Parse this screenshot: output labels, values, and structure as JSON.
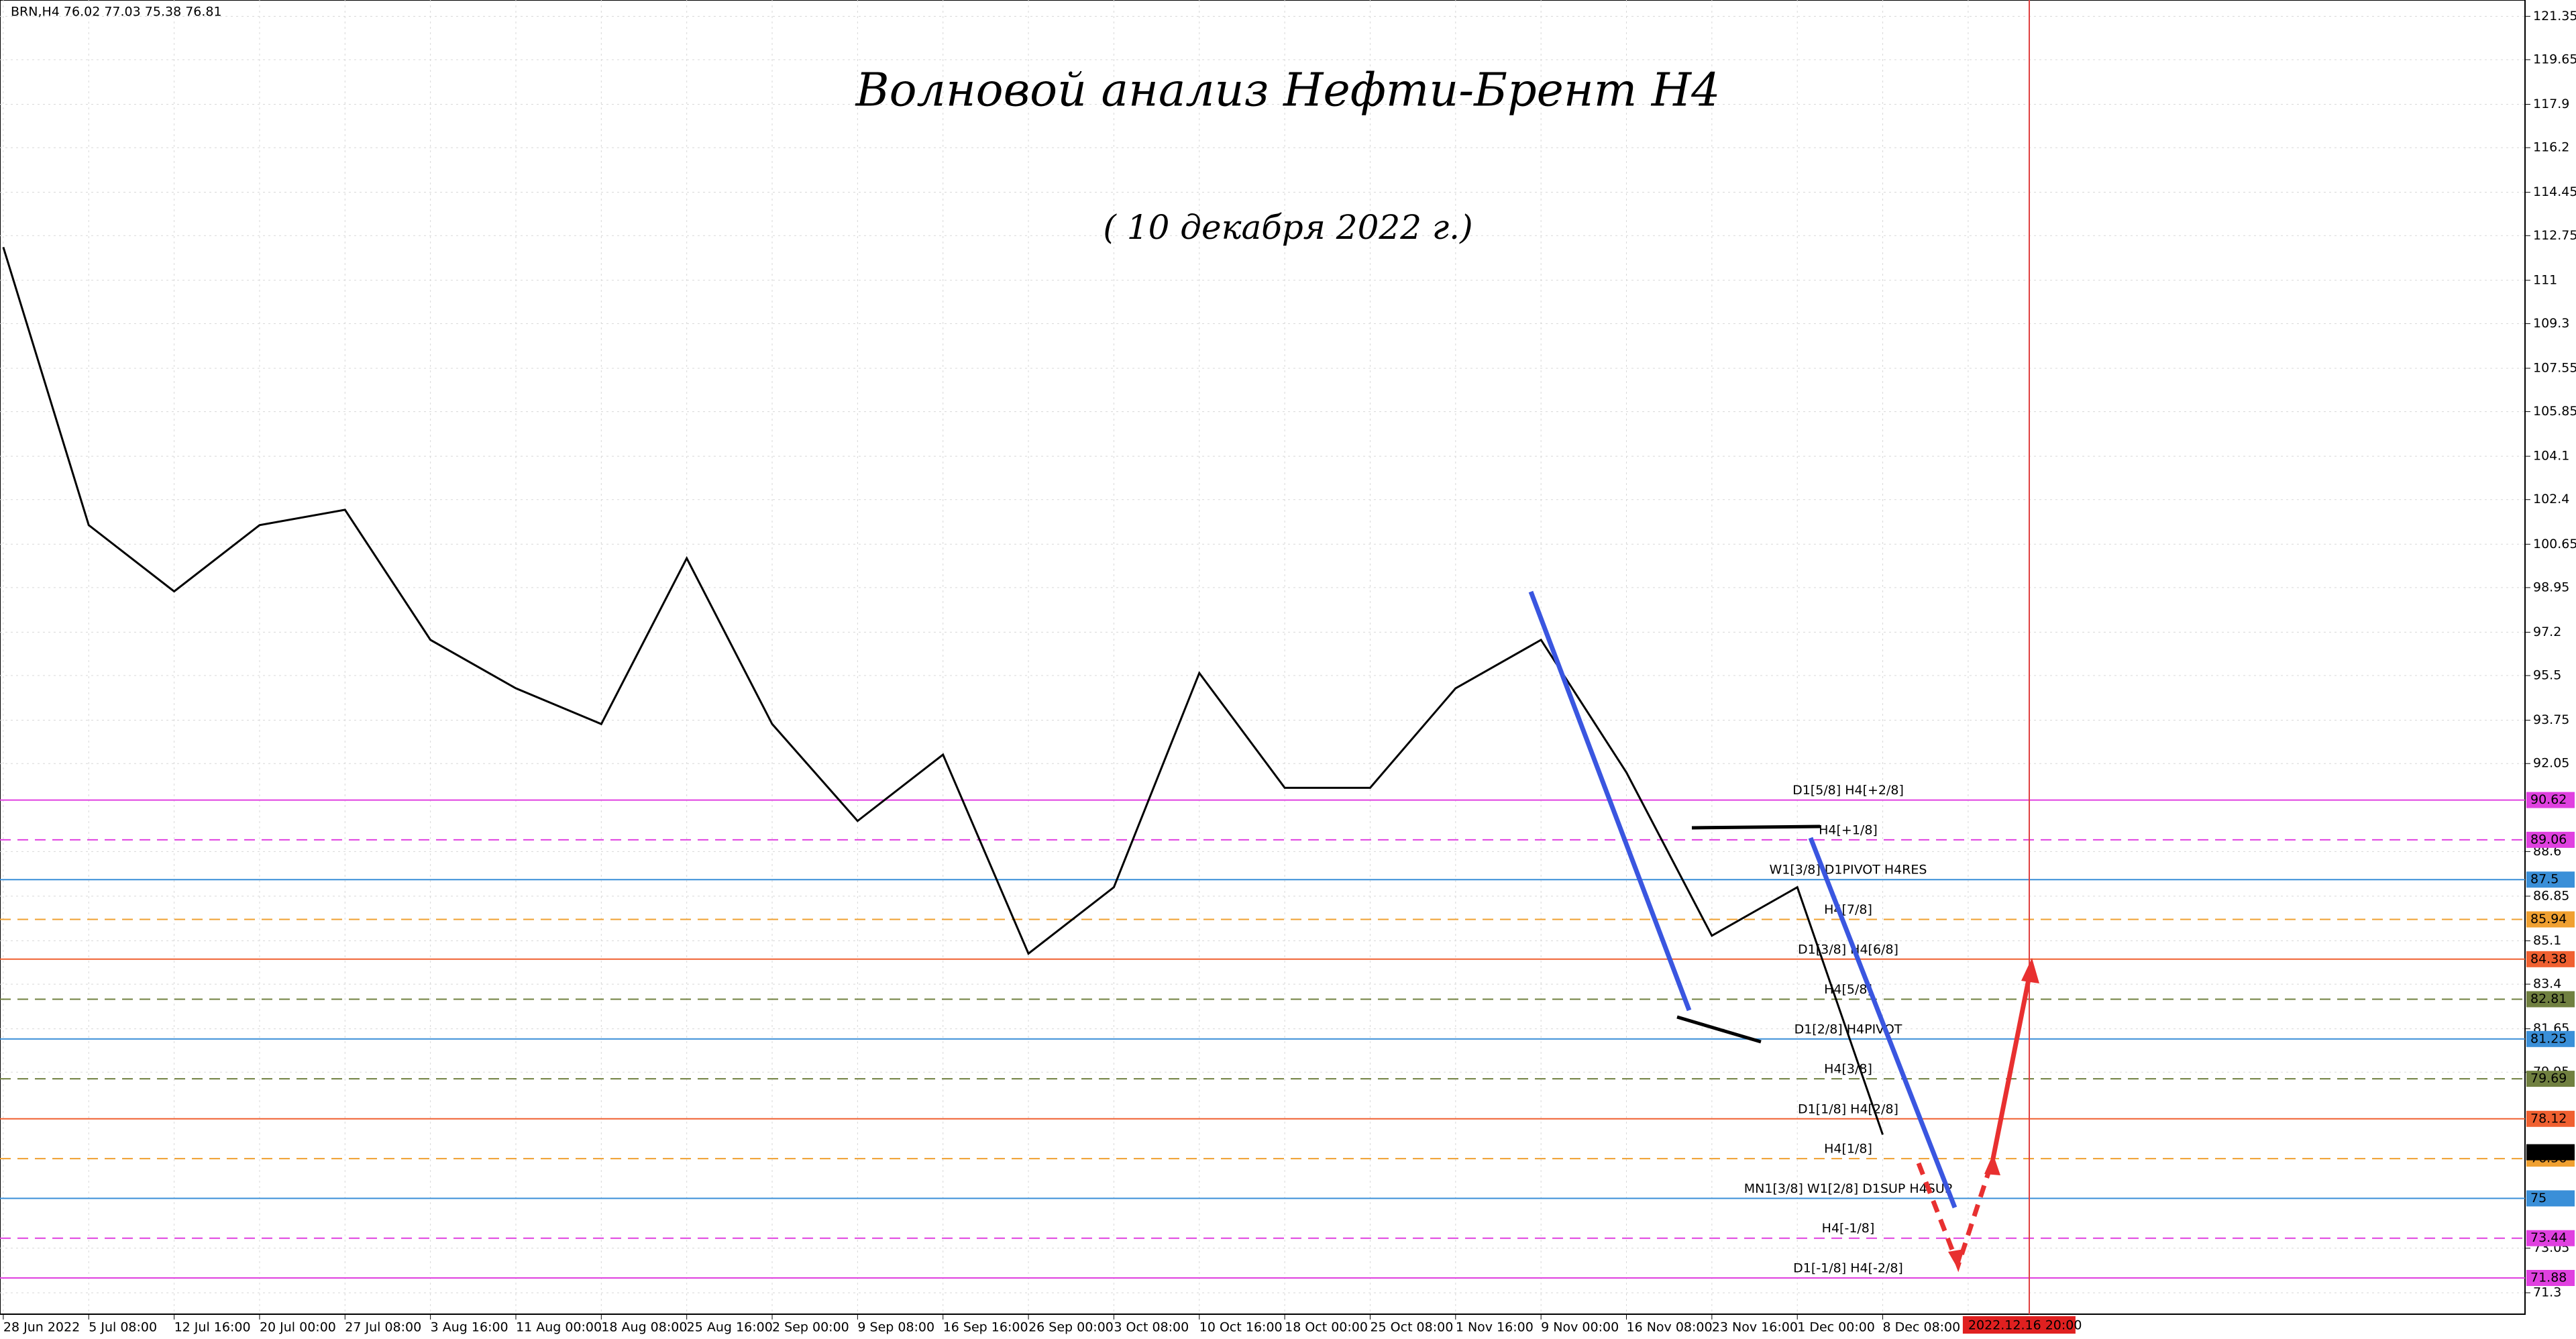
{
  "chart_data": {
    "type": "line",
    "symbol_header": "BRN,H4  76.02 77.03 75.38 76.81",
    "title": "Волновой анализ Нефти-Брент H4",
    "subtitle": "( 10 декабря 2022 г.)",
    "categories": [
      "28 Jun 2022",
      "5 Jul 08:00",
      "12 Jul 16:00",
      "20 Jul 00:00",
      "27 Jul 08:00",
      "3 Aug 16:00",
      "11 Aug 00:00",
      "18 Aug 08:00",
      "25 Aug 16:00",
      "2 Sep 00:00",
      "9 Sep 08:00",
      "16 Sep 16:00",
      "26 Sep 00:00",
      "3 Oct 08:00",
      "10 Oct 16:00",
      "18 Oct 00:00",
      "25 Oct 08:00",
      "1 Nov 16:00",
      "9 Nov 00:00",
      "16 Nov 08:00",
      "23 Nov 16:00",
      "1 Dec 00:00",
      "8 Dec 08:00",
      "2022.12.16 20:00"
    ],
    "series": [
      {
        "name": "BRN,H4",
        "color": "#000000",
        "values": [
          112.3,
          101.4,
          98.8,
          101.4,
          102.0,
          96.9,
          95.0,
          93.6,
          100.1,
          93.6,
          89.8,
          92.4,
          84.6,
          87.2,
          95.6,
          91.1,
          91.1,
          95.0,
          96.9,
          91.7,
          85.3,
          87.2,
          77.5,
          null
        ]
      }
    ],
    "last_price": 76.81,
    "ylim": [
      70.46,
      121.99
    ],
    "yticks": [
      121.35,
      119.65,
      117.9,
      116.2,
      114.45,
      112.75,
      111.0,
      109.3,
      107.55,
      105.85,
      104.1,
      102.4,
      100.65,
      98.95,
      97.2,
      95.5,
      93.75,
      92.05,
      88.6,
      86.85,
      85.1,
      83.4,
      81.65,
      79.95,
      73.05,
      71.3
    ],
    "grid": true,
    "levels": [
      {
        "value": 90.62,
        "label": "D1[5/8] H4[+2/8]",
        "color": "#e040e0",
        "dashed": false
      },
      {
        "value": 89.06,
        "label": "H4[+1/8]",
        "color": "#e040e0",
        "dashed": true
      },
      {
        "value": 87.5,
        "label": "W1[3/8] D1PIVOT H4RES",
        "color": "#3a8fd8",
        "dashed": false
      },
      {
        "value": 85.94,
        "label": "H4[7/8]",
        "color": "#f0a030",
        "dashed": true
      },
      {
        "value": 84.38,
        "label": "D1[3/8] H4[6/8]",
        "color": "#f06030",
        "dashed": false
      },
      {
        "value": 82.81,
        "label": "H4[5/8]",
        "color": "#708040",
        "dashed": true
      },
      {
        "value": 81.25,
        "label": "D1[2/8] H4PIVOT",
        "color": "#3a8fd8",
        "dashed": false
      },
      {
        "value": 79.69,
        "label": "H4[3/8]",
        "color": "#708040",
        "dashed": true
      },
      {
        "value": 78.12,
        "label": "D1[1/8] H4[2/8]",
        "color": "#f06030",
        "dashed": false
      },
      {
        "value": 76.56,
        "label": "H4[1/8]",
        "color": "#f0a030",
        "dashed": true
      },
      {
        "value": 75.0,
        "label": "MN1[3/8] W1[2/8] D1SUP H4SUP",
        "color": "#3a8fd8",
        "dashed": false
      },
      {
        "value": 73.44,
        "label": "H4[-1/8]",
        "color": "#e040e0",
        "dashed": true
      },
      {
        "value": 71.88,
        "label": "D1[-1/8] H4[-2/8]",
        "color": "#e040e0",
        "dashed": false
      }
    ]
  }
}
